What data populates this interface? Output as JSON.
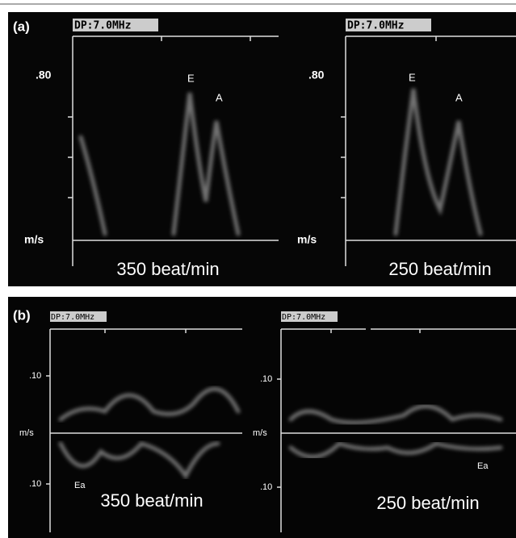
{
  "panels": [
    {
      "label": "(a)",
      "images": [
        {
          "header": "DP:7.0MHz",
          "scale_top": ".80",
          "unit": "m/s",
          "peak_e": "E",
          "peak_a": "A",
          "rate": "350 beat/min"
        },
        {
          "header": "DP:7.0MHz",
          "scale_top": ".80",
          "unit": "m/s",
          "peak_e": "E",
          "peak_a": "A",
          "rate": "250 beat/min"
        }
      ]
    },
    {
      "label": "(b)",
      "images": [
        {
          "header": "DP:7.0MHz",
          "scale_top": ".10",
          "unit": "m/s",
          "scale_bottom": ".10",
          "wave_label": "Ea",
          "rate": "350 beat/min"
        },
        {
          "header": "DP:7.0MHz",
          "scale_top": ".10",
          "unit": "m/s",
          "scale_bottom": ".10",
          "wave_label": "Ea",
          "rate": "250 beat/min"
        }
      ]
    }
  ]
}
